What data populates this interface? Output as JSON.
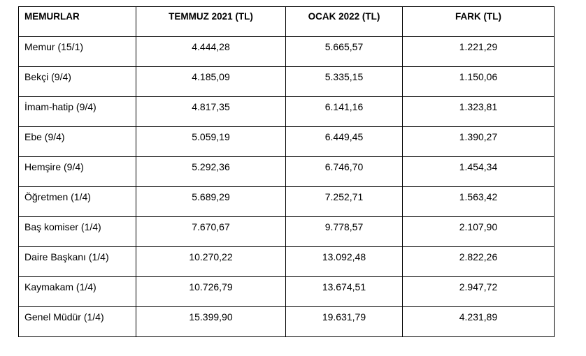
{
  "table": {
    "headers": [
      "MEMURLAR",
      "TEMMUZ 2021 (TL)",
      "OCAK 2022 (TL)",
      "FARK (TL)"
    ],
    "rows": [
      [
        "Memur (15/1)",
        "4.444,28",
        "5.665,57",
        "1.221,29"
      ],
      [
        "Bekçi (9/4)",
        "4.185,09",
        "5.335,15",
        "1.150,06"
      ],
      [
        "İmam-hatip (9/4)",
        "4.817,35",
        "6.141,16",
        "1.323,81"
      ],
      [
        "Ebe (9/4)",
        "5.059,19",
        "6.449,45",
        "1.390,27"
      ],
      [
        "Hemşire (9/4)",
        "5.292,36",
        "6.746,70",
        "1.454,34"
      ],
      [
        "Öğretmen (1/4)",
        "5.689,29",
        "7.252,71",
        "1.563,42"
      ],
      [
        "Baş komiser (1/4)",
        "7.670,67",
        "9.778,57",
        "2.107,90"
      ],
      [
        "Daire Başkanı (1/4)",
        "10.270,22",
        "13.092,48",
        "2.822,26"
      ],
      [
        "Kaymakam (1/4)",
        "10.726,79",
        "13.674,51",
        "2.947,72"
      ],
      [
        "Genel Müdür (1/4)",
        "15.399,90",
        "19.631,79",
        "4.231,89"
      ]
    ]
  }
}
